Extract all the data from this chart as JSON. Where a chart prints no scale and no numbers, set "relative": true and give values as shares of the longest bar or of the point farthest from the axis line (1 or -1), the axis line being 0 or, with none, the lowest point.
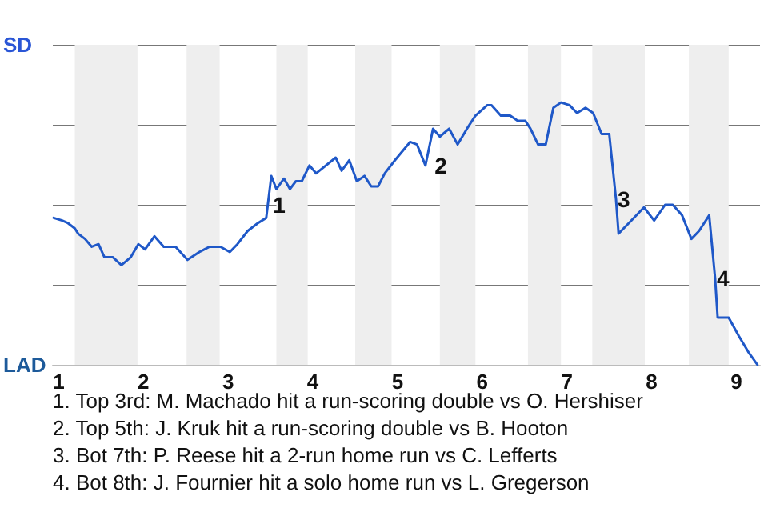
{
  "chart_data": {
    "type": "line",
    "relative": true,
    "x": [
      0.94,
      1.04,
      1.11,
      1.19,
      1.23,
      1.31,
      1.39,
      1.47,
      1.54,
      1.64,
      1.74,
      1.85,
      1.94,
      2.02,
      2.13,
      2.24,
      2.38,
      2.52,
      2.66,
      2.78,
      2.91,
      3.02,
      3.11,
      3.23,
      3.35,
      3.45,
      3.51,
      3.57,
      3.66,
      3.73,
      3.8,
      3.87,
      3.96,
      4.04,
      4.27,
      4.34,
      4.43,
      4.52,
      4.61,
      4.69,
      4.77,
      4.85,
      4.97,
      5.15,
      5.23,
      5.33,
      5.42,
      5.5,
      5.61,
      5.71,
      5.82,
      5.92,
      6.06,
      6.11,
      6.22,
      6.33,
      6.42,
      6.51,
      6.57,
      6.66,
      6.75,
      6.84,
      6.93,
      7.03,
      7.12,
      7.22,
      7.31,
      7.41,
      7.5,
      7.58,
      7.61,
      7.76,
      7.91,
      8.03,
      8.16,
      8.25,
      8.36,
      8.47,
      8.56,
      8.68,
      8.75,
      8.78,
      8.91,
      9.03,
      9.14,
      9.25
    ],
    "series": [
      {
        "color": "#1f58c8",
        "values": [
          0.56,
          0.55,
          0.54,
          0.52,
          0.5,
          0.48,
          0.45,
          0.46,
          0.41,
          0.41,
          0.38,
          0.41,
          0.46,
          0.44,
          0.49,
          0.45,
          0.45,
          0.4,
          0.43,
          0.45,
          0.45,
          0.43,
          0.46,
          0.51,
          0.54,
          0.56,
          0.72,
          0.67,
          0.71,
          0.67,
          0.7,
          0.7,
          0.76,
          0.73,
          0.79,
          0.74,
          0.78,
          0.7,
          0.72,
          0.68,
          0.68,
          0.73,
          0.78,
          0.85,
          0.84,
          0.76,
          0.9,
          0.87,
          0.9,
          0.84,
          0.9,
          0.95,
          0.99,
          0.99,
          0.95,
          0.95,
          0.93,
          0.93,
          0.9,
          0.84,
          0.84,
          0.98,
          1,
          0.99,
          0.96,
          0.98,
          0.96,
          0.88,
          0.88,
          0.63,
          0.5,
          0.55,
          0.6,
          0.55,
          0.61,
          0.61,
          0.57,
          0.48,
          0.51,
          0.57,
          0.33,
          0.18,
          0.18,
          0.11,
          0.05,
          0
        ]
      }
    ],
    "xlim": [
      0.93,
      9.28
    ],
    "xticks": [
      1,
      2,
      3,
      4,
      5,
      6,
      7,
      8,
      9
    ],
    "grid": "y",
    "bands": [
      {
        "axis": "x",
        "from": 1.19,
        "to": 1.93,
        "color": "#eeeeee"
      },
      {
        "axis": "x",
        "from": 2.51,
        "to": 2.9,
        "color": "#eeeeee"
      },
      {
        "axis": "x",
        "from": 3.57,
        "to": 3.94,
        "color": "#eeeeee"
      },
      {
        "axis": "x",
        "from": 4.5,
        "to": 4.93,
        "color": "#eeeeee"
      },
      {
        "axis": "x",
        "from": 5.5,
        "to": 5.92,
        "color": "#eeeeee"
      },
      {
        "axis": "x",
        "from": 6.54,
        "to": 6.93,
        "color": "#eeeeee"
      },
      {
        "axis": "x",
        "from": 7.3,
        "to": 7.92,
        "color": "#eeeeee"
      },
      {
        "axis": "x",
        "from": 8.44,
        "to": 8.91,
        "color": "#eeeeee"
      }
    ],
    "annotations": [
      "SD",
      "LAD",
      {
        "text": "1",
        "x": 3.51,
        "y": 0.61
      },
      {
        "text": "2",
        "x": 5.42,
        "y": 0.76
      },
      {
        "text": "3",
        "x": 7.58,
        "y": 0.63
      },
      {
        "text": "4",
        "x": 8.75,
        "y": 0.33
      },
      "1. Top 3rd: M. Machado hit a run-scoring double vs O. Hershiser",
      "2. Top 5th: J. Kruk hit a run-scoring double vs B. Hooton",
      "3. Bot 7th: P. Reese hit a 2-run home run vs C. Lefferts",
      "4. Bot 8th: J. Fournier hit a solo home run vs L. Gregerson"
    ]
  }
}
